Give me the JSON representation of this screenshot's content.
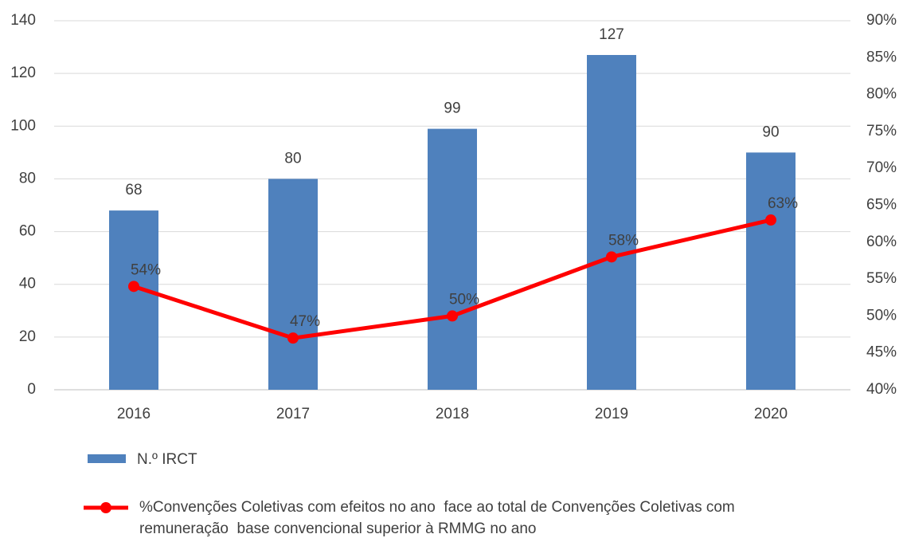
{
  "chart_data": {
    "type": "bar",
    "categories": [
      "2016",
      "2017",
      "2018",
      "2019",
      "2020"
    ],
    "series": [
      {
        "name": "N.º IRCT",
        "type": "bar",
        "color": "#4f81bd",
        "values": [
          68,
          80,
          99,
          127,
          90
        ]
      },
      {
        "name": "%Convenções Coletivas com efeitos no ano  face ao total de Convenções Coletivas com remuneração  base convencional superior à RMMG no ano",
        "type": "line",
        "axis": "y2",
        "color": "#ff0000",
        "values": [
          54,
          47,
          50,
          58,
          63
        ],
        "value_labels": [
          "54%",
          "47%",
          "50%",
          "58%",
          "63%"
        ]
      }
    ],
    "ylim": [
      0,
      140
    ],
    "yticks": [
      0,
      20,
      40,
      60,
      80,
      100,
      120,
      140
    ],
    "y2lim": [
      40,
      90
    ],
    "y2ticks": [
      {
        "value": 40,
        "label": "40%"
      },
      {
        "value": 45,
        "label": "45%"
      },
      {
        "value": 50,
        "label": "50%"
      },
      {
        "value": 55,
        "label": "55%"
      },
      {
        "value": 60,
        "label": "60%"
      },
      {
        "value": 65,
        "label": "65%"
      },
      {
        "value": 70,
        "label": "70%"
      },
      {
        "value": 75,
        "label": "75%"
      },
      {
        "value": 80,
        "label": "80%"
      },
      {
        "value": 85,
        "label": "85%"
      },
      {
        "value": 90,
        "label": "90%"
      }
    ],
    "grid": true,
    "legend": "bottom"
  }
}
